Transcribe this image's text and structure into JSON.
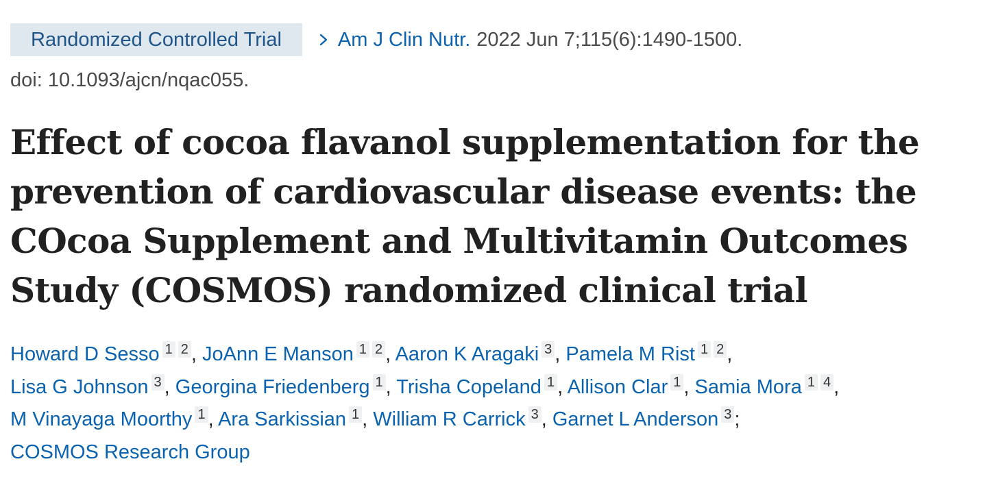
{
  "article_type": "Randomized Controlled Trial",
  "journal": "Am J Clin Nutr.",
  "citation": "2022 Jun 7;115(6):1490-1500.",
  "doi": "doi: 10.1093/ajcn/nqac055.",
  "title": "Effect of cocoa flavanol supplementation for the prevention of cardiovascular disease events: the COcoa Supplement and Multivitamin Outcomes Study (COSMOS) randomized clinical trial",
  "authors": [
    {
      "name": "Howard D Sesso",
      "affiliations": [
        "1",
        "2"
      ]
    },
    {
      "name": "JoAnn E Manson",
      "affiliations": [
        "1",
        "2"
      ]
    },
    {
      "name": "Aaron K Aragaki",
      "affiliations": [
        "3"
      ]
    },
    {
      "name": "Pamela M Rist",
      "affiliations": [
        "1",
        "2"
      ]
    },
    {
      "name": "Lisa G Johnson",
      "affiliations": [
        "3"
      ]
    },
    {
      "name": "Georgina Friedenberg",
      "affiliations": [
        "1"
      ]
    },
    {
      "name": "Trisha Copeland",
      "affiliations": [
        "1"
      ]
    },
    {
      "name": "Allison Clar",
      "affiliations": [
        "1"
      ]
    },
    {
      "name": "Samia Mora",
      "affiliations": [
        "1",
        "4"
      ]
    },
    {
      "name": "M Vinayaga Moorthy",
      "affiliations": [
        "1"
      ]
    },
    {
      "name": "Ara Sarkissian",
      "affiliations": [
        "1"
      ]
    },
    {
      "name": "William R Carrick",
      "affiliations": [
        "3"
      ]
    },
    {
      "name": "Garnet L Anderson",
      "affiliations": [
        "3"
      ]
    }
  ],
  "group": "COSMOS Research Group",
  "icons": {
    "journal_link": "chevron-right-icon"
  },
  "colors": {
    "link": "#0b63b0",
    "badge_bg": "#dfe7ef",
    "badge_text": "#20558a"
  }
}
